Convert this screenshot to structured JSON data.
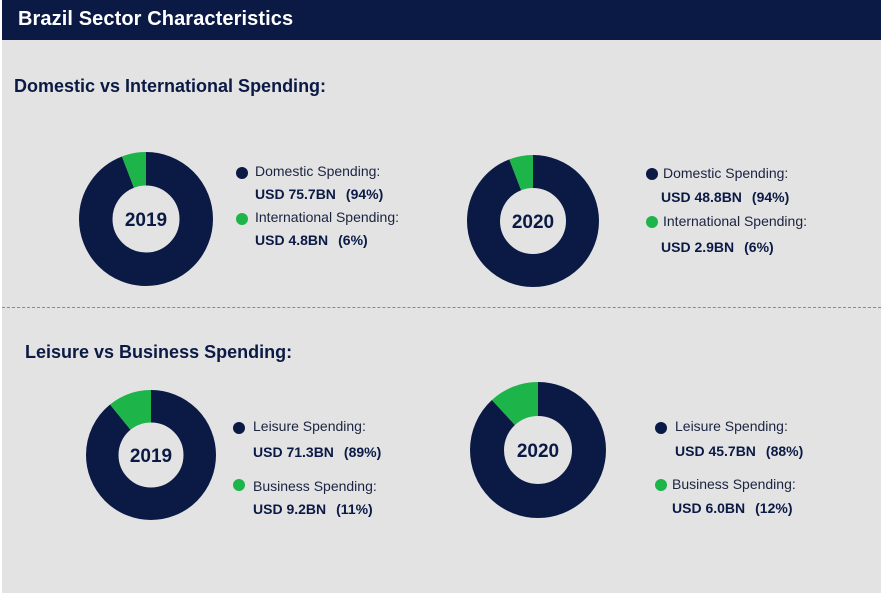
{
  "header": {
    "title": "Brazil Sector Characteristics"
  },
  "colors": {
    "navy": "#0b1a45",
    "green": "#1db44a",
    "background": "#e3e3e3"
  },
  "sections": [
    {
      "title": "Domestic vs International Spending:"
    },
    {
      "title": "Leisure vs Business Spending:"
    }
  ],
  "chart_data": [
    {
      "type": "pie",
      "title": "Domestic vs International Spending",
      "year": "2019",
      "slices": [
        {
          "label": "Domestic Spending:",
          "value": "USD 75.7BN",
          "amount": 75.7,
          "pct_label": "(94%)",
          "pct": 94,
          "color": "#0b1a45"
        },
        {
          "label": "International Spending:",
          "value": "USD 4.8BN",
          "amount": 4.8,
          "pct_label": "(6%)",
          "pct": 6,
          "color": "#1db44a"
        }
      ]
    },
    {
      "type": "pie",
      "title": "Domestic vs International Spending",
      "year": "2020",
      "slices": [
        {
          "label": "Domestic Spending:",
          "value": "USD 48.8BN",
          "amount": 48.8,
          "pct_label": "(94%)",
          "pct": 94,
          "color": "#0b1a45"
        },
        {
          "label": "International Spending:",
          "value": "USD 2.9BN",
          "amount": 2.9,
          "pct_label": "(6%)",
          "pct": 6,
          "color": "#1db44a"
        }
      ]
    },
    {
      "type": "pie",
      "title": "Leisure vs Business Spending",
      "year": "2019",
      "slices": [
        {
          "label": "Leisure Spending:",
          "value": "USD 71.3BN",
          "amount": 71.3,
          "pct_label": "(89%)",
          "pct": 89,
          "color": "#0b1a45"
        },
        {
          "label": "Business Spending:",
          "value": "USD 9.2BN",
          "amount": 9.2,
          "pct_label": "(11%)",
          "pct": 11,
          "color": "#1db44a"
        }
      ]
    },
    {
      "type": "pie",
      "title": "Leisure vs Business Spending",
      "year": "2020",
      "slices": [
        {
          "label": "Leisure Spending:",
          "value": "USD 45.7BN",
          "amount": 45.7,
          "pct_label": "(88%)",
          "pct": 88,
          "color": "#0b1a45"
        },
        {
          "label": "Business Spending:",
          "value": "USD 6.0BN",
          "amount": 6.0,
          "pct_label": "(12%)",
          "pct": 12,
          "color": "#1db44a"
        }
      ]
    }
  ]
}
